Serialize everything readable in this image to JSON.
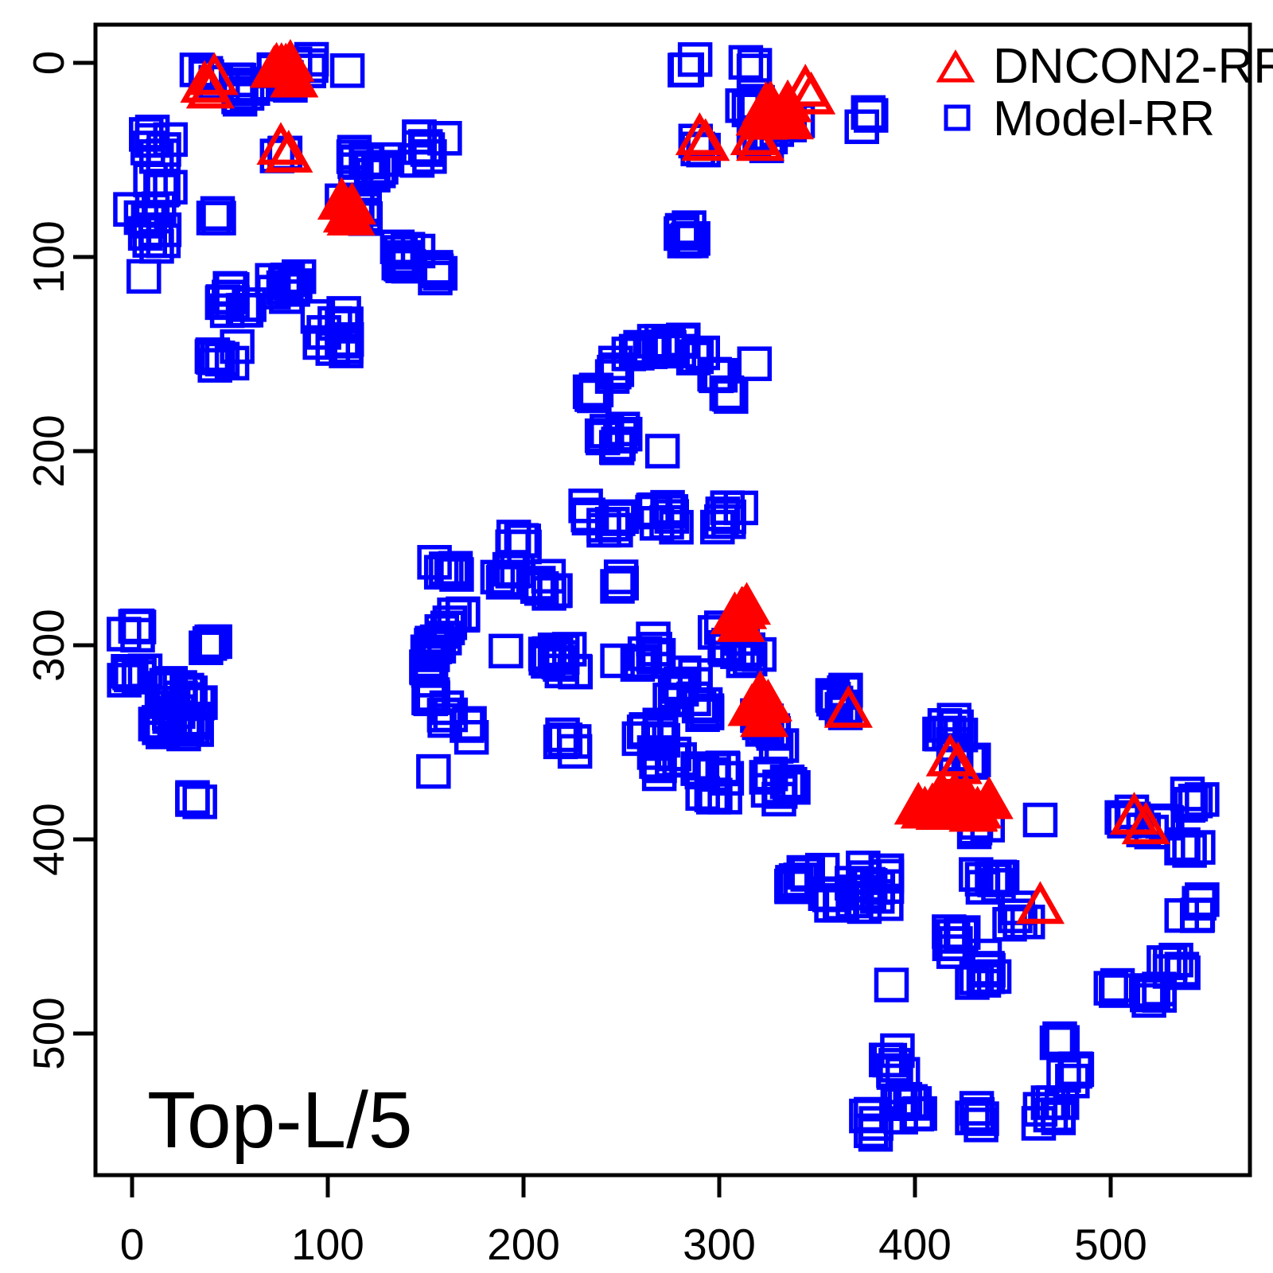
{
  "annotation": {
    "title": "Top-L/5"
  },
  "legend": {
    "items": [
      {
        "label": "DNCON2-RR",
        "marker": "triangle",
        "color": "#FF0000"
      },
      {
        "label": "Model-RR",
        "marker": "square",
        "color": "#0000FF"
      }
    ]
  },
  "colors": {
    "dncon2": "#FF0000",
    "model": "#0000FF",
    "axis": "#000000",
    "background": "#FFFFFF"
  },
  "chart_data": {
    "type": "scatter",
    "title": "Top-L/5",
    "xlabel": "",
    "ylabel": "",
    "x_ticks": [
      0,
      100,
      200,
      300,
      400,
      500
    ],
    "y_ticks": [
      0,
      100,
      200,
      300,
      400,
      500
    ],
    "xlim": [
      -19,
      571
    ],
    "ylim": [
      573,
      -20
    ],
    "y_axis_reversed": true,
    "grid": false,
    "legend_position": "top-right-inside",
    "series": [
      {
        "name": "Model-RR",
        "marker": "square",
        "color": "#0000FF",
        "clusters": [
          [
            38,
            8,
            4,
            5,
            5
          ],
          [
            58,
            13,
            8,
            7,
            6
          ],
          [
            78,
            6,
            8,
            8,
            6
          ],
          [
            92,
            2,
            3,
            2,
            4
          ],
          [
            13,
            42,
            8,
            8,
            7
          ],
          [
            14,
            60,
            6,
            6,
            6
          ],
          [
            8,
            85,
            12,
            9,
            10
          ],
          [
            43,
            77,
            3,
            3,
            3
          ],
          [
            77,
            44,
            3,
            4,
            4
          ],
          [
            120,
            50,
            12,
            10,
            8
          ],
          [
            152,
            45,
            8,
            8,
            7
          ],
          [
            114,
            75,
            8,
            8,
            8
          ],
          [
            140,
            97,
            10,
            9,
            8
          ],
          [
            154,
            108,
            4,
            4,
            4
          ],
          [
            53,
            120,
            10,
            8,
            8
          ],
          [
            78,
            115,
            10,
            8,
            7
          ],
          [
            102,
            139,
            12,
            9,
            10
          ],
          [
            47,
            152,
            8,
            7,
            7
          ],
          [
            285,
            2,
            3,
            4,
            4
          ],
          [
            315,
            3,
            3,
            4,
            4
          ],
          [
            376,
            29,
            3,
            4,
            4
          ],
          [
            315,
            25,
            5,
            6,
            5
          ],
          [
            335,
            30,
            5,
            6,
            5
          ],
          [
            322,
            40,
            4,
            5,
            4
          ],
          [
            290,
            42,
            3,
            3,
            4
          ],
          [
            283,
            88,
            8,
            5,
            9
          ],
          [
            237,
            169,
            4,
            4,
            4
          ],
          [
            246,
            158,
            4,
            4,
            4
          ],
          [
            256,
            150,
            4,
            4,
            4
          ],
          [
            267,
            146,
            4,
            4,
            4
          ],
          [
            279,
            145,
            5,
            5,
            4
          ],
          [
            290,
            151,
            4,
            4,
            4
          ],
          [
            298,
            159,
            4,
            4,
            4
          ],
          [
            303,
            169,
            4,
            4,
            4
          ],
          [
            245,
            196,
            9,
            7,
            8
          ],
          [
            235,
            231,
            3,
            4,
            4
          ],
          [
            247,
            236,
            6,
            6,
            5
          ],
          [
            272,
            233,
            9,
            7,
            8
          ],
          [
            306,
            237,
            7,
            7,
            8
          ],
          [
            160,
            258,
            7,
            6,
            6
          ],
          [
            192,
            264,
            7,
            6,
            6
          ],
          [
            213,
            269,
            7,
            6,
            5
          ],
          [
            196,
            246,
            5,
            5,
            4
          ],
          [
            248,
            266,
            3,
            4,
            4
          ],
          [
            168,
            282,
            3,
            4,
            4
          ],
          [
            159,
            291,
            3,
            4,
            4
          ],
          [
            152,
            301,
            3,
            4,
            4
          ],
          [
            150,
            312,
            4,
            4,
            5
          ],
          [
            155,
            324,
            4,
            4,
            5
          ],
          [
            163,
            335,
            4,
            4,
            4
          ],
          [
            171,
            344,
            3,
            4,
            4
          ],
          [
            217,
            307,
            9,
            7,
            7
          ],
          [
            305,
            297,
            10,
            8,
            7
          ],
          [
            322,
            340,
            6,
            6,
            6
          ],
          [
            331,
            349,
            3,
            4,
            4
          ],
          [
            223,
            350,
            5,
            5,
            5
          ],
          [
            265,
            343,
            8,
            7,
            6
          ],
          [
            273,
            361,
            8,
            7,
            6
          ],
          [
            297,
            371,
            12,
            8,
            8
          ],
          [
            331,
            372,
            9,
            7,
            8
          ],
          [
            0,
            291,
            5,
            5,
            5
          ],
          [
            3,
            318,
            6,
            6,
            5
          ],
          [
            40,
            300,
            4,
            5,
            4
          ],
          [
            20,
            318,
            5,
            6,
            5
          ],
          [
            28,
            326,
            7,
            7,
            6
          ],
          [
            21,
            336,
            7,
            7,
            6
          ],
          [
            32,
            341,
            6,
            6,
            5
          ],
          [
            15,
            343,
            4,
            4,
            4
          ],
          [
            33,
            378,
            3,
            3,
            3
          ],
          [
            155,
            300,
            6,
            6,
            5
          ],
          [
            225,
            308,
            6,
            7,
            6
          ],
          [
            263,
            303,
            8,
            7,
            7
          ],
          [
            281,
            321,
            9,
            8,
            8
          ],
          [
            291,
            331,
            5,
            5,
            5
          ],
          [
            315,
            305,
            5,
            6,
            4
          ],
          [
            363,
            331,
            8,
            7,
            8
          ],
          [
            417,
            345,
            8,
            7,
            8
          ],
          [
            425,
            357,
            4,
            5,
            4
          ],
          [
            434,
            394,
            4,
            5,
            3
          ],
          [
            508,
            388,
            4,
            6,
            4
          ],
          [
            523,
            394,
            6,
            7,
            7
          ],
          [
            543,
            380,
            5,
            6,
            5
          ],
          [
            540,
            404,
            4,
            5,
            4
          ],
          [
            543,
            435,
            5,
            7,
            5
          ],
          [
            376,
            424,
            18,
            10,
            11
          ],
          [
            345,
            420,
            8,
            9,
            5
          ],
          [
            359,
            431,
            5,
            5,
            4
          ],
          [
            439,
            423,
            9,
            8,
            6
          ],
          [
            452,
            440,
            5,
            6,
            5
          ],
          [
            420,
            452,
            7,
            6,
            7
          ],
          [
            434,
            466,
            8,
            7,
            8
          ],
          [
            502,
            478,
            3,
            3,
            4
          ],
          [
            534,
            467,
            6,
            7,
            5
          ],
          [
            524,
            480,
            6,
            7,
            5
          ],
          [
            390,
            515,
            7,
            5,
            7
          ],
          [
            398,
            540,
            8,
            7,
            7
          ],
          [
            378,
            547,
            5,
            4,
            6
          ],
          [
            432,
            545,
            5,
            4,
            7
          ],
          [
            474,
            503,
            3,
            3,
            4
          ],
          [
            480,
            521,
            6,
            6,
            4
          ],
          [
            470,
            540,
            8,
            7,
            7
          ]
        ],
        "singles": [
          [
            110,
            4
          ],
          [
            6,
            110
          ],
          [
            318,
            155
          ],
          [
            271,
            200
          ],
          [
            191,
            303
          ],
          [
            248,
            308
          ],
          [
            154,
            365
          ],
          [
            152,
            318
          ],
          [
            -4,
            318
          ],
          [
            464,
            390
          ],
          [
            388,
            475
          ]
        ]
      },
      {
        "name": "DNCON2-RR",
        "marker": "triangle",
        "color": "#FF0000",
        "open_points": [
          [
            37,
            11
          ],
          [
            42,
            7
          ],
          [
            40,
            14
          ],
          [
            76,
            43
          ],
          [
            80,
            47
          ],
          [
            290,
            38
          ],
          [
            293,
            41
          ],
          [
            318,
            38
          ],
          [
            321,
            41
          ],
          [
            344,
            13
          ],
          [
            347,
            17
          ],
          [
            366,
            333
          ],
          [
            418,
            358
          ],
          [
            422,
            362
          ],
          [
            464,
            434
          ],
          [
            512,
            388
          ],
          [
            518,
            393
          ]
        ],
        "filled_clusters": [
          [
            78,
            4,
            6,
            6,
            5
          ],
          [
            112,
            75,
            4,
            5,
            5
          ],
          [
            327,
            25,
            7,
            11,
            6
          ],
          [
            311,
            284,
            5,
            4,
            5
          ],
          [
            321,
            331,
            5,
            6,
            7
          ],
          [
            408,
            381,
            6,
            7,
            5
          ],
          [
            423,
            380,
            2,
            3,
            3
          ],
          [
            434,
            384,
            5,
            6,
            5
          ]
        ]
      }
    ]
  }
}
